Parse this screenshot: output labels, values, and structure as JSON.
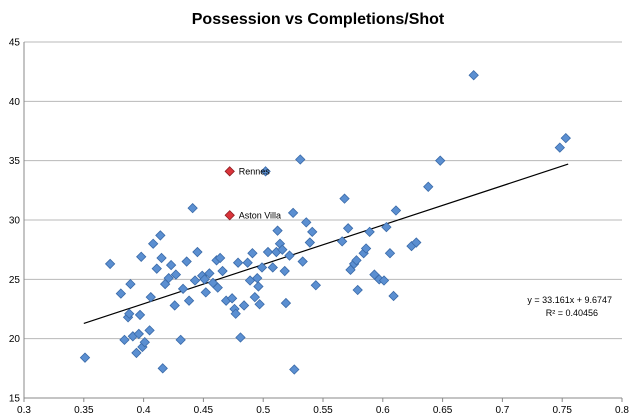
{
  "colors": {
    "point": "#5b8fd1",
    "point_stroke": "#3a6aa8",
    "highlight": "#d9343a",
    "highlight_stroke": "#8a1c20",
    "grid": "#b8b8b8",
    "axis": "#888888",
    "trend": "#000000"
  },
  "chart_data": {
    "type": "scatter",
    "title": "Possession vs Completions/Shot",
    "xlabel": "",
    "ylabel": "",
    "xlim": [
      0.3,
      0.8
    ],
    "ylim": [
      15,
      45
    ],
    "x_ticks": [
      0.3,
      0.35,
      0.4,
      0.45,
      0.5,
      0.55,
      0.6,
      0.65,
      0.7,
      0.75,
      0.8
    ],
    "x_tick_labels": [
      "0.3",
      "0.35",
      "0.4",
      "0.45",
      "0.5",
      "0.55",
      "0.6",
      "0.65",
      "0.7",
      "0.75",
      "0.8"
    ],
    "y_ticks": [
      15,
      20,
      25,
      30,
      35,
      40,
      45
    ],
    "y_tick_labels": [
      "15",
      "20",
      "25",
      "30",
      "35",
      "40",
      "45"
    ],
    "grid": "horizontal",
    "legend": "none",
    "points": [
      [
        0.351,
        18.4
      ],
      [
        0.372,
        26.3
      ],
      [
        0.381,
        23.8
      ],
      [
        0.384,
        19.9
      ],
      [
        0.387,
        21.8
      ],
      [
        0.388,
        22.1
      ],
      [
        0.389,
        24.6
      ],
      [
        0.391,
        20.2
      ],
      [
        0.394,
        18.8
      ],
      [
        0.396,
        20.4
      ],
      [
        0.397,
        22.0
      ],
      [
        0.398,
        26.9
      ],
      [
        0.399,
        19.3
      ],
      [
        0.401,
        19.7
      ],
      [
        0.405,
        20.7
      ],
      [
        0.406,
        23.5
      ],
      [
        0.408,
        28.0
      ],
      [
        0.411,
        25.9
      ],
      [
        0.414,
        28.7
      ],
      [
        0.415,
        26.8
      ],
      [
        0.416,
        17.5
      ],
      [
        0.418,
        24.6
      ],
      [
        0.421,
        25.1
      ],
      [
        0.423,
        26.2
      ],
      [
        0.426,
        22.8
      ],
      [
        0.427,
        25.4
      ],
      [
        0.431,
        19.9
      ],
      [
        0.433,
        24.2
      ],
      [
        0.436,
        26.5
      ],
      [
        0.438,
        23.2
      ],
      [
        0.441,
        31.0
      ],
      [
        0.443,
        24.9
      ],
      [
        0.445,
        27.3
      ],
      [
        0.449,
        25.3
      ],
      [
        0.451,
        25.0
      ],
      [
        0.452,
        23.9
      ],
      [
        0.455,
        25.5
      ],
      [
        0.458,
        24.7
      ],
      [
        0.461,
        26.6
      ],
      [
        0.462,
        24.3
      ],
      [
        0.464,
        26.8
      ],
      [
        0.466,
        25.7
      ],
      [
        0.469,
        23.2
      ],
      [
        0.474,
        23.4
      ],
      [
        0.476,
        22.5
      ],
      [
        0.477,
        22.1
      ],
      [
        0.479,
        26.4
      ],
      [
        0.481,
        20.1
      ],
      [
        0.484,
        22.8
      ],
      [
        0.487,
        26.4
      ],
      [
        0.489,
        24.9
      ],
      [
        0.491,
        27.2
      ],
      [
        0.493,
        23.5
      ],
      [
        0.495,
        25.1
      ],
      [
        0.496,
        24.4
      ],
      [
        0.497,
        22.9
      ],
      [
        0.499,
        26.0
      ],
      [
        0.502,
        34.1
      ],
      [
        0.504,
        27.3
      ],
      [
        0.508,
        26.0
      ],
      [
        0.511,
        27.3
      ],
      [
        0.512,
        29.1
      ],
      [
        0.514,
        28.0
      ],
      [
        0.516,
        27.5
      ],
      [
        0.518,
        25.7
      ],
      [
        0.519,
        23.0
      ],
      [
        0.522,
        27.0
      ],
      [
        0.525,
        30.6
      ],
      [
        0.526,
        17.4
      ],
      [
        0.531,
        35.1
      ],
      [
        0.533,
        26.5
      ],
      [
        0.536,
        29.8
      ],
      [
        0.539,
        28.1
      ],
      [
        0.541,
        29.0
      ],
      [
        0.544,
        24.5
      ],
      [
        0.566,
        28.2
      ],
      [
        0.568,
        31.8
      ],
      [
        0.571,
        29.3
      ],
      [
        0.573,
        25.8
      ],
      [
        0.576,
        26.3
      ],
      [
        0.578,
        26.6
      ],
      [
        0.579,
        24.1
      ],
      [
        0.584,
        27.2
      ],
      [
        0.586,
        27.6
      ],
      [
        0.589,
        29.0
      ],
      [
        0.593,
        25.4
      ],
      [
        0.597,
        25.0
      ],
      [
        0.601,
        24.9
      ],
      [
        0.603,
        29.4
      ],
      [
        0.606,
        27.2
      ],
      [
        0.609,
        23.6
      ],
      [
        0.611,
        30.8
      ],
      [
        0.624,
        27.8
      ],
      [
        0.628,
        28.1
      ],
      [
        0.638,
        32.8
      ],
      [
        0.648,
        35.0
      ],
      [
        0.676,
        42.2
      ],
      [
        0.748,
        36.1
      ],
      [
        0.753,
        36.9
      ]
    ],
    "highlighted": [
      {
        "label": "Rennes",
        "x": 0.472,
        "y": 34.1
      },
      {
        "label": "Aston Villa",
        "x": 0.472,
        "y": 30.4
      }
    ],
    "trendline": {
      "slope": 33.161,
      "intercept": 9.6747,
      "x_range": [
        0.35,
        0.755
      ],
      "equation": "y = 33.161x + 9.6747",
      "r_squared": "R² = 0.40456"
    }
  }
}
